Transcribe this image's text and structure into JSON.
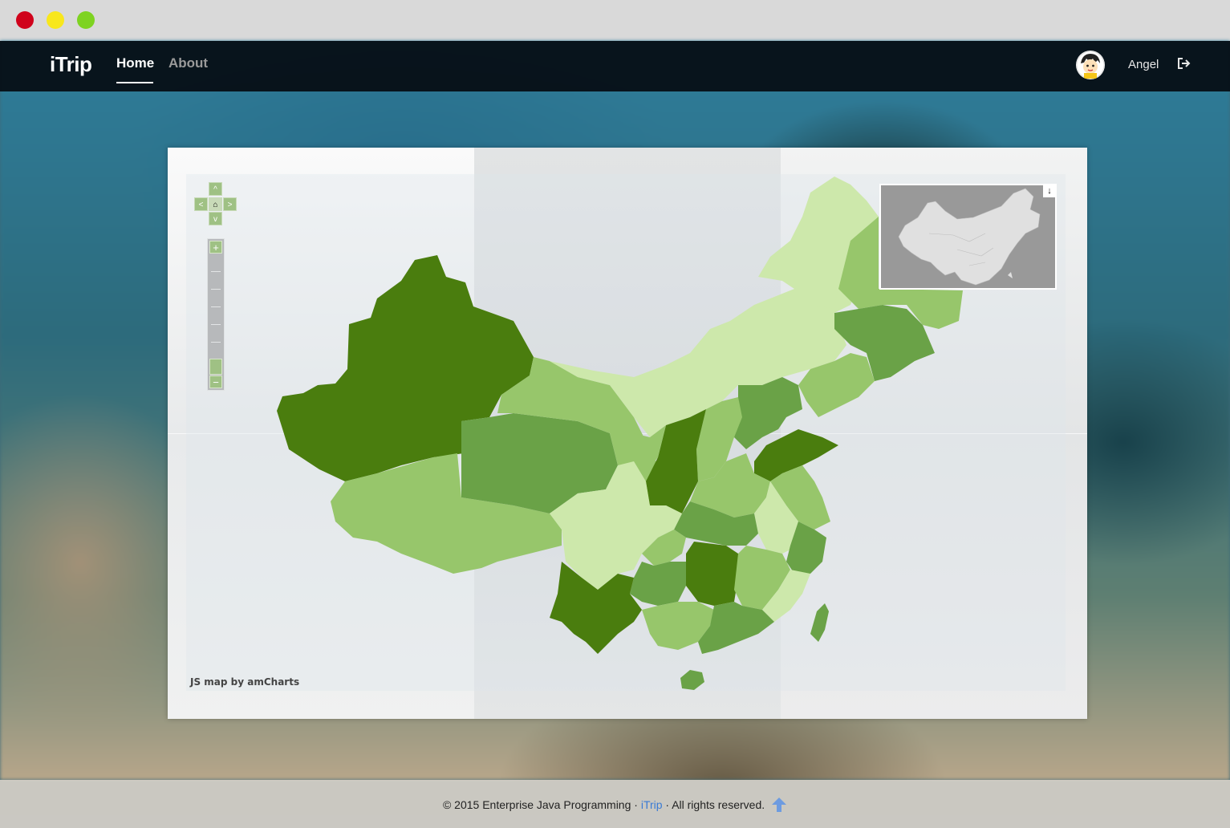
{
  "window": {
    "controls": [
      "close",
      "minimize",
      "maximize"
    ]
  },
  "navbar": {
    "brand": "iTrip",
    "links": [
      {
        "label": "Home",
        "active": true
      },
      {
        "label": "About",
        "active": false
      }
    ],
    "user": {
      "name": "Angel",
      "avatar": "avatar-icon"
    },
    "logout_icon": "logout-icon"
  },
  "map": {
    "credit": "JS map by amCharts",
    "controls": {
      "pan": [
        "up",
        "down",
        "left",
        "right",
        "home"
      ],
      "zoom_in": "+",
      "zoom_out": "−"
    },
    "colors": {
      "darkest": "#4a7d0e",
      "dark": "#6aa247",
      "medium": "#97c66b",
      "light": "#cde8ab",
      "minimap_land": "#e0e0e0",
      "minimap_bg": "#999999"
    }
  },
  "footer": {
    "copyright": "© 2015 Enterprise Java Programming · ",
    "link": "iTrip",
    "rights": " · All rights reserved."
  }
}
